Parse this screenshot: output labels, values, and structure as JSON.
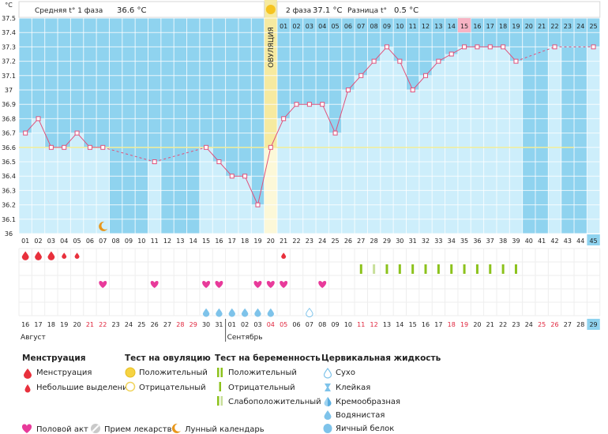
{
  "header": {
    "unit": "°C",
    "phase1_label": "Средняя t° 1 фаза",
    "phase1_value": "36.6 °C",
    "phase2_label": "2 фаза",
    "phase2_value": "37.1 °C",
    "diff_label": "Разница t°",
    "diff_value": "0.5 °C",
    "ovulation_label": "ОВУЛЯЦИЯ"
  },
  "colors": {
    "top_band": "#8fd3ef",
    "col_fill": "#cdeefb",
    "grid": "#ffffff",
    "line": "#e0507a",
    "coverline": "#f2ee9a",
    "ovulation": "#f6eaa0",
    "ovulation_pale": "#fcf8d8",
    "highlight": "#f7b3c4",
    "today": "#8fd3ef",
    "blood": "#e8303c",
    "heart": "#e83a9a",
    "drop": "#7ec3ea",
    "test_pos": "#8cc21c",
    "test_weak": "#c8df9a",
    "moon": "#e8961a",
    "weekend": "#e0243c",
    "text": "#222222"
  },
  "chart_data": {
    "type": "line",
    "title": "",
    "xlabel": "",
    "ylabel": "°C",
    "ylim": [
      36,
      37.5
    ],
    "y_ticks": [
      "36",
      "36.1",
      "36.2",
      "36.3",
      "36.4",
      "36.5",
      "36.6",
      "36.7",
      "36.8",
      "36.9",
      "37",
      "37.1",
      "37.2",
      "37.3",
      "37.4",
      "37.5"
    ],
    "cycle_days": [
      "01",
      "02",
      "03",
      "04",
      "05",
      "06",
      "07",
      "08",
      "09",
      "10",
      "11",
      "12",
      "13",
      "14",
      "15",
      "16",
      "17",
      "18",
      "19",
      "20",
      "21",
      "22",
      "23",
      "24",
      "25",
      "26",
      "27",
      "28",
      "29",
      "30",
      "31",
      "32",
      "33",
      "34",
      "35",
      "36",
      "37",
      "38",
      "39",
      "40",
      "41",
      "42",
      "43",
      "44",
      "45"
    ],
    "calendar_days": [
      "16",
      "17",
      "18",
      "19",
      "20",
      "21",
      "22",
      "23",
      "24",
      "25",
      "26",
      "27",
      "28",
      "29",
      "30",
      "31",
      "01",
      "02",
      "03",
      "04",
      "05",
      "06",
      "07",
      "08",
      "09",
      "10",
      "11",
      "12",
      "13",
      "14",
      "15",
      "16",
      "17",
      "18",
      "19",
      "20",
      "21",
      "22",
      "23",
      "24",
      "25",
      "26",
      "27",
      "28",
      "29"
    ],
    "weekend_days": [
      5,
      6,
      12,
      13,
      19,
      20,
      26,
      27,
      33,
      34,
      40,
      41
    ],
    "month_labels": [
      {
        "day": 1,
        "text": "Август"
      },
      {
        "day": 17,
        "text": "Сентябрь"
      }
    ],
    "phase2_day_labels": [
      "01",
      "02",
      "03",
      "04",
      "05",
      "06",
      "07",
      "08",
      "09",
      "10",
      "11",
      "12",
      "13",
      "14",
      "15",
      "16",
      "17",
      "18",
      "19",
      "20",
      "21",
      "22",
      "23",
      "24",
      "25"
    ],
    "phase2_start_day": 21,
    "highlight_day": 35,
    "ovulation_day": 20,
    "today_day": 45,
    "coverline": 36.6,
    "temperatures": [
      36.7,
      36.8,
      36.6,
      36.6,
      36.7,
      36.6,
      36.6,
      null,
      null,
      null,
      36.5,
      null,
      null,
      null,
      36.6,
      36.5,
      36.4,
      36.4,
      36.2,
      36.6,
      36.8,
      36.9,
      36.9,
      36.9,
      36.7,
      37.0,
      37.1,
      37.2,
      37.3,
      37.2,
      37.0,
      37.1,
      37.2,
      37.25,
      37.3,
      37.3,
      37.3,
      37.3,
      37.2,
      null,
      null,
      37.3,
      null,
      null,
      37.3
    ],
    "menstruation": [
      1,
      2,
      3
    ],
    "spotting": [
      4,
      5,
      21
    ],
    "intercourse": [
      7,
      11,
      15,
      16,
      19,
      20,
      21,
      24
    ],
    "fluid_watery": [
      15,
      16,
      17,
      18,
      19,
      20
    ],
    "fluid_dry": [
      23
    ],
    "ovulation_test_negative": [],
    "pregnancy_test_positive": [
      27,
      29,
      30,
      31,
      32,
      33,
      34,
      35,
      36,
      37,
      38,
      39
    ],
    "pregnancy_test_weak": [
      28
    ],
    "lunar": [
      7
    ]
  },
  "legend": {
    "menstruation_title": "Менструация",
    "menstruation_item": "Менструация",
    "spotting_item": "Небольшие выделения",
    "ovulation_test_title": "Тест на овуляцию",
    "ovulation_test_positive": "Положительный",
    "ovulation_test_negative": "Отрицательный",
    "pregnancy_test_title": "Тест на беременность",
    "pregnancy_test_positive": "Положительный",
    "pregnancy_test_negative": "Отрицательный",
    "pregnancy_test_weak": "Слабоположительный",
    "fluid_title": "Цервикальная жидкость",
    "fluid_dry": "Сухо",
    "fluid_sticky": "Клейкая",
    "fluid_creamy": "Кремообразная",
    "fluid_watery": "Водянистая",
    "fluid_eggwhite": "Яичный белок",
    "intercourse": "Половой акт",
    "medication": "Прием лекарств",
    "lunar": "Лунный календарь"
  }
}
